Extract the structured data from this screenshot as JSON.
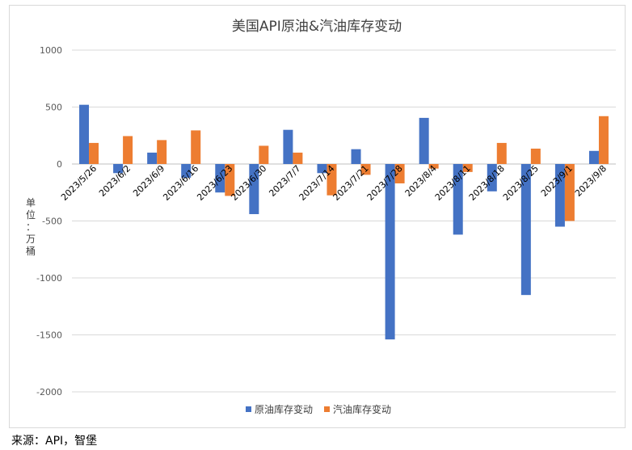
{
  "source": "来源：API，智堡",
  "chart_data": {
    "type": "bar",
    "title": "美国API原油&汽油库存变动",
    "ylabel": "单位：万桶",
    "xlabel": "",
    "ylim": [
      -2000,
      1000
    ],
    "yticks": [
      1000,
      500,
      0,
      -500,
      -1000,
      -1500,
      -2000
    ],
    "grid": true,
    "legend_position": "bottom",
    "categories": [
      "2023/5/26",
      "2023/6/2",
      "2023/6/9",
      "2023/6/16",
      "2023/6/23",
      "2023/6/30",
      "2023/7/7",
      "2023/7/14",
      "2023/7/21",
      "2023/7/28",
      "2023/8/4",
      "2023/8/11",
      "2023/8/18",
      "2023/8/25",
      "2023/9/1",
      "2023/9/8"
    ],
    "series": [
      {
        "name": "原油库存变动",
        "color": "#4472c4",
        "values": [
          520,
          -80,
          100,
          -120,
          -250,
          -440,
          300,
          -80,
          130,
          -1540,
          405,
          -620,
          -240,
          -1150,
          -550,
          115
        ]
      },
      {
        "name": "汽油库存变动",
        "color": "#ed7d31",
        "values": [
          185,
          245,
          210,
          295,
          -280,
          160,
          100,
          -275,
          -95,
          -170,
          -40,
          -70,
          185,
          135,
          -500,
          420
        ]
      }
    ]
  }
}
